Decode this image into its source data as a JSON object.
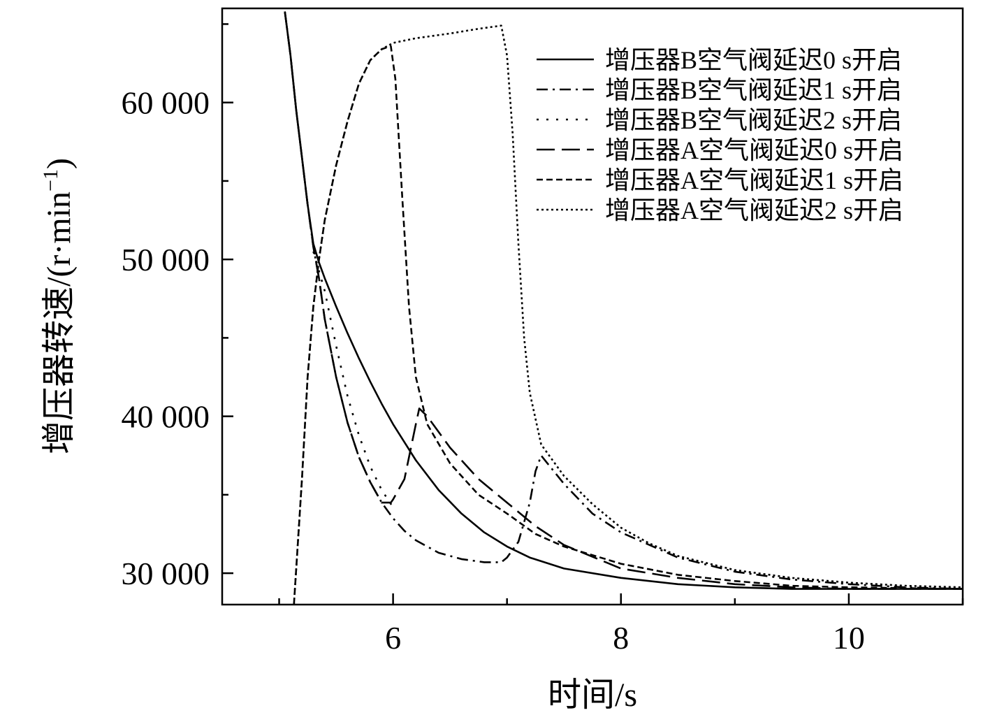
{
  "chart_data": {
    "type": "line",
    "title": "",
    "xlabel": "时间/s",
    "ylabel": "增压器转速/(r·min",
    "ylabel_sup": "−1",
    "ylabel_close": ")",
    "xlim": [
      4.5,
      11.0
    ],
    "ylim": [
      28000,
      66000
    ],
    "x_ticks": [
      6,
      8,
      10
    ],
    "x_tick_labels": [
      "6",
      "8",
      "10"
    ],
    "x_minor_ticks": [
      5,
      7,
      9,
      11
    ],
    "y_ticks": [
      30000,
      40000,
      50000,
      60000
    ],
    "y_tick_labels": [
      "30 000",
      "40 000",
      "50 000",
      "60 000"
    ],
    "y_minor_ticks": [
      35000,
      45000,
      55000,
      65000
    ],
    "legend_position": "top-right",
    "grid": false,
    "series": [
      {
        "name": "增压器B空气阀延迟0 s开启",
        "style": "solid",
        "points": [
          [
            5.05,
            65800
          ],
          [
            5.1,
            63000
          ],
          [
            5.15,
            59500
          ],
          [
            5.2,
            56500
          ],
          [
            5.25,
            53500
          ],
          [
            5.3,
            51000
          ],
          [
            5.35,
            49800
          ],
          [
            5.4,
            48800
          ],
          [
            5.5,
            47000
          ],
          [
            5.6,
            45300
          ],
          [
            5.7,
            43700
          ],
          [
            5.8,
            42200
          ],
          [
            5.9,
            40800
          ],
          [
            6.0,
            39500
          ],
          [
            6.2,
            37200
          ],
          [
            6.4,
            35300
          ],
          [
            6.6,
            33800
          ],
          [
            6.8,
            32600
          ],
          [
            7.0,
            31700
          ],
          [
            7.2,
            31000
          ],
          [
            7.5,
            30300
          ],
          [
            8.0,
            29700
          ],
          [
            8.5,
            29300
          ],
          [
            9.0,
            29100
          ],
          [
            9.5,
            29000
          ],
          [
            10.0,
            29000
          ],
          [
            10.5,
            29000
          ],
          [
            11.0,
            29000
          ]
        ]
      },
      {
        "name": "增压器B空气阀延迟1 s开启",
        "style": "dashdot",
        "points": [
          [
            5.05,
            65800
          ],
          [
            5.1,
            63000
          ],
          [
            5.15,
            59500
          ],
          [
            5.2,
            56500
          ],
          [
            5.25,
            53500
          ],
          [
            5.3,
            50800
          ],
          [
            5.35,
            48800
          ],
          [
            5.4,
            46200
          ],
          [
            5.5,
            42500
          ],
          [
            5.6,
            39600
          ],
          [
            5.7,
            37400
          ],
          [
            5.8,
            35800
          ],
          [
            5.9,
            34500
          ],
          [
            6.0,
            33500
          ],
          [
            6.1,
            32700
          ],
          [
            6.2,
            32100
          ],
          [
            6.4,
            31300
          ],
          [
            6.6,
            30900
          ],
          [
            6.8,
            30700
          ],
          [
            6.95,
            30700
          ],
          [
            7.0,
            31000
          ],
          [
            7.1,
            32000
          ],
          [
            7.2,
            34500
          ],
          [
            7.25,
            36500
          ],
          [
            7.3,
            37500
          ],
          [
            7.5,
            35700
          ],
          [
            7.75,
            33800
          ],
          [
            8.0,
            32600
          ],
          [
            8.5,
            31000
          ],
          [
            9.0,
            30100
          ],
          [
            9.5,
            29600
          ],
          [
            10.0,
            29300
          ],
          [
            10.5,
            29100
          ],
          [
            11.0,
            29000
          ]
        ]
      },
      {
        "name": "增压器B空气阀延迟2 s开启",
        "style": "dotted-sparse",
        "points": [
          [
            5.3,
            50500
          ],
          [
            5.4,
            48000
          ],
          [
            5.5,
            44500
          ],
          [
            5.6,
            41300
          ],
          [
            5.7,
            38800
          ],
          [
            5.8,
            36800
          ],
          [
            5.9,
            35300
          ],
          [
            6.0,
            34200
          ]
        ]
      },
      {
        "name": "增压器A空气阀延迟0 s开启",
        "style": "dashed-long",
        "points": [
          [
            5.05,
            65800
          ],
          [
            5.1,
            63000
          ],
          [
            5.15,
            59500
          ],
          [
            5.2,
            56500
          ],
          [
            5.25,
            53500
          ],
          [
            5.3,
            50800
          ],
          [
            5.35,
            48800
          ],
          [
            5.4,
            46200
          ],
          [
            5.5,
            42500
          ],
          [
            5.6,
            39600
          ],
          [
            5.7,
            37400
          ],
          [
            5.8,
            35800
          ],
          [
            5.9,
            34500
          ],
          [
            5.98,
            34500
          ],
          [
            6.0,
            34700
          ],
          [
            6.1,
            36000
          ],
          [
            6.2,
            39500
          ],
          [
            6.23,
            40500
          ],
          [
            6.3,
            40000
          ],
          [
            6.5,
            38000
          ],
          [
            6.75,
            36000
          ],
          [
            7.0,
            34500
          ],
          [
            7.25,
            33000
          ],
          [
            7.5,
            31800
          ],
          [
            8.0,
            30300
          ],
          [
            8.5,
            29700
          ],
          [
            9.0,
            29300
          ],
          [
            9.5,
            29100
          ],
          [
            10.0,
            29000
          ],
          [
            11.0,
            29000
          ]
        ]
      },
      {
        "name": "增压器A空气阀延迟1 s开启",
        "style": "dashed-short",
        "points": [
          [
            5.13,
            28000
          ],
          [
            5.2,
            36000
          ],
          [
            5.25,
            42500
          ],
          [
            5.3,
            47000
          ],
          [
            5.35,
            50000
          ],
          [
            5.4,
            52500
          ],
          [
            5.5,
            56000
          ],
          [
            5.6,
            58800
          ],
          [
            5.7,
            61200
          ],
          [
            5.8,
            62700
          ],
          [
            5.9,
            63400
          ],
          [
            5.98,
            63600
          ],
          [
            6.02,
            61500
          ],
          [
            6.08,
            54000
          ],
          [
            6.14,
            47000
          ],
          [
            6.2,
            42500
          ],
          [
            6.3,
            39500
          ],
          [
            6.5,
            37000
          ],
          [
            6.75,
            35000
          ],
          [
            7.0,
            33800
          ],
          [
            7.25,
            32500
          ],
          [
            7.5,
            31700
          ],
          [
            8.0,
            30600
          ],
          [
            8.5,
            29900
          ],
          [
            9.0,
            29500
          ],
          [
            9.5,
            29200
          ],
          [
            10.0,
            29100
          ],
          [
            11.0,
            29000
          ]
        ]
      },
      {
        "name": "增压器A空气阀延迟2 s开启",
        "style": "dotted-dense",
        "points": [
          [
            5.13,
            28000
          ],
          [
            5.2,
            36000
          ],
          [
            5.25,
            42500
          ],
          [
            5.3,
            47000
          ],
          [
            5.35,
            50000
          ],
          [
            5.4,
            52500
          ],
          [
            5.5,
            56000
          ],
          [
            5.6,
            58800
          ],
          [
            5.7,
            61200
          ],
          [
            5.8,
            62700
          ],
          [
            5.9,
            63400
          ],
          [
            6.0,
            63800
          ],
          [
            6.2,
            64100
          ],
          [
            6.5,
            64400
          ],
          [
            6.75,
            64700
          ],
          [
            6.95,
            64900
          ],
          [
            7.0,
            63000
          ],
          [
            7.05,
            58000
          ],
          [
            7.1,
            51000
          ],
          [
            7.15,
            45000
          ],
          [
            7.2,
            41500
          ],
          [
            7.3,
            38200
          ],
          [
            7.5,
            36200
          ],
          [
            7.75,
            34400
          ],
          [
            8.0,
            32900
          ],
          [
            8.25,
            31900
          ],
          [
            8.5,
            31100
          ],
          [
            9.0,
            30200
          ],
          [
            9.5,
            29700
          ],
          [
            10.0,
            29400
          ],
          [
            10.5,
            29200
          ],
          [
            11.0,
            29100
          ]
        ]
      }
    ]
  }
}
